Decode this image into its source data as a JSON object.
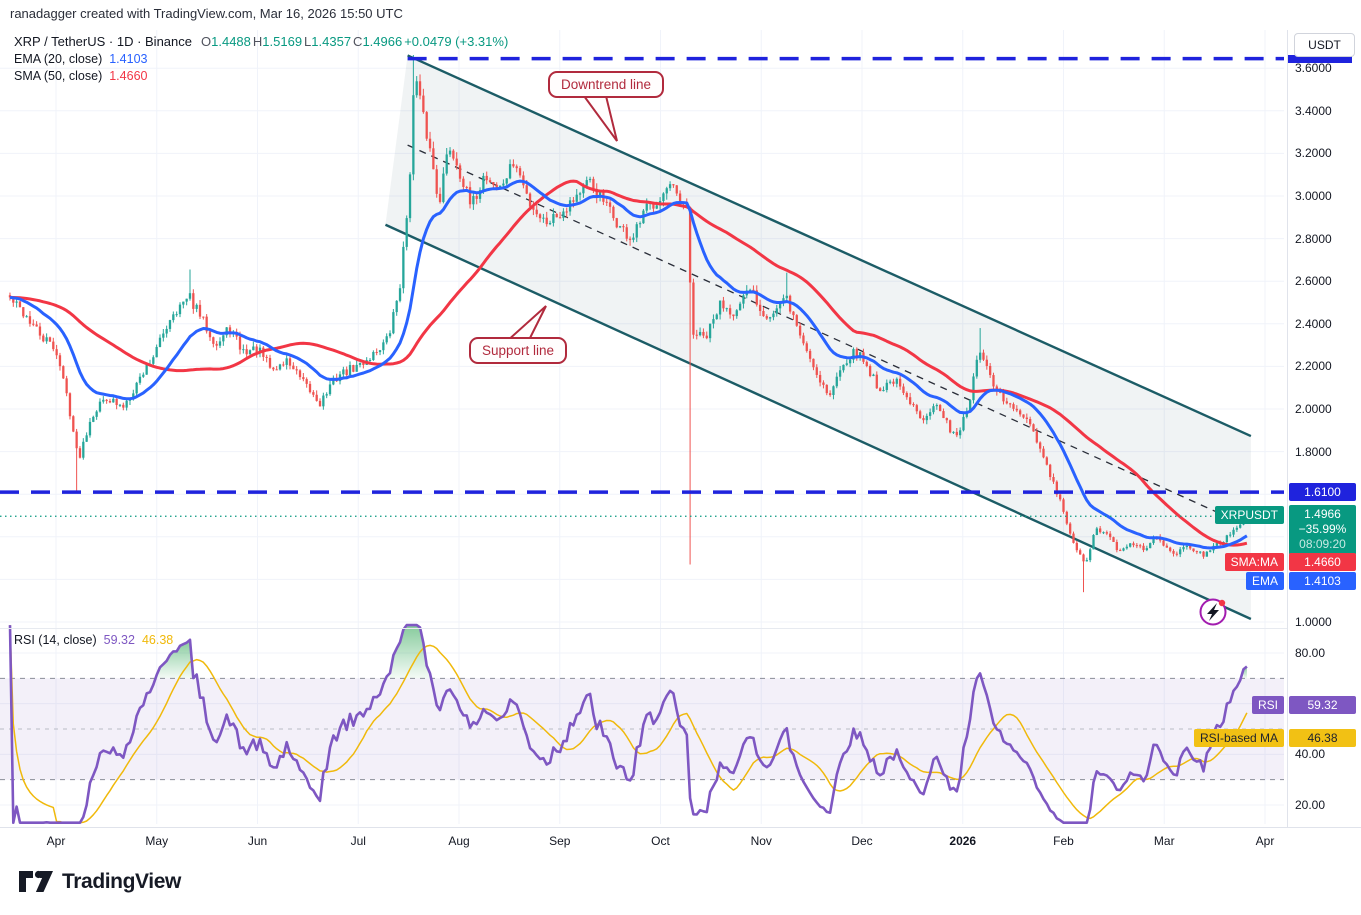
{
  "attribution": "ranadagger created with TradingView.com, Mar 16, 2026 15:50 UTC",
  "header": {
    "title": "XRP / TetherUS · 1D · Binance",
    "ohlc": [
      {
        "k": "O",
        "v": "1.4488"
      },
      {
        "k": "H",
        "v": "1.5169"
      },
      {
        "k": "L",
        "v": "1.4357"
      },
      {
        "k": "C",
        "v": "1.4966"
      },
      {
        "k": "",
        "v": "+0.0479 (+3.31%)"
      }
    ],
    "ema_label": "EMA (20, close)",
    "ema_value": "1.4103",
    "sma_label": "SMA (50, close)",
    "sma_value": "1.4660"
  },
  "rsi_legend": {
    "label": "RSI (14, close)",
    "value": "59.32",
    "ma_value": "46.38"
  },
  "annotations": {
    "downtrend": "Downtrend line",
    "support": "Support line"
  },
  "price_axis": {
    "currency": "USDT",
    "ticks": [
      {
        "label": "3.6000",
        "value": 3.6
      },
      {
        "label": "3.4000",
        "value": 3.4
      },
      {
        "label": "3.2000",
        "value": 3.2
      },
      {
        "label": "3.0000",
        "value": 3.0
      },
      {
        "label": "2.8000",
        "value": 2.8
      },
      {
        "label": "2.6000",
        "value": 2.6
      },
      {
        "label": "2.4000",
        "value": 2.4
      },
      {
        "label": "2.2000",
        "value": 2.2
      },
      {
        "label": "2.0000",
        "value": 2.0
      },
      {
        "label": "1.8000",
        "value": 1.8
      },
      {
        "label": "1.0000",
        "value": 1.0
      }
    ],
    "level_label": "1.6100",
    "countdown": {
      "price": "1.4966",
      "change": "−35.99%",
      "time": "08:09:20"
    },
    "sma": "1.4660",
    "ema": "1.4103",
    "tags": {
      "symbol": "XRPUSDT",
      "sma": "SMA:MA",
      "ema": "EMA",
      "rsi": "RSI",
      "rsi_ma": "RSI-based MA"
    }
  },
  "rsi_axis": {
    "ticks": [
      {
        "label": "80.00",
        "value": 80
      },
      {
        "label": "40.00",
        "value": 40
      },
      {
        "label": "20.00",
        "value": 20
      }
    ],
    "value": "59.32",
    "ma_value": "46.38"
  },
  "time_axis": {
    "months": [
      {
        "label": "Apr",
        "m": 0
      },
      {
        "label": "May",
        "m": 1
      },
      {
        "label": "Jun",
        "m": 2
      },
      {
        "label": "Jul",
        "m": 3
      },
      {
        "label": "Aug",
        "m": 4
      },
      {
        "label": "Sep",
        "m": 5
      },
      {
        "label": "Oct",
        "m": 6
      },
      {
        "label": "Nov",
        "m": 7
      },
      {
        "label": "Dec",
        "m": 8
      },
      {
        "label": "2026",
        "m": 9,
        "bold": true
      },
      {
        "label": "Feb",
        "m": 10
      },
      {
        "label": "Mar",
        "m": 11
      },
      {
        "label": "Apr",
        "m": 12
      }
    ]
  },
  "logo_text": "TradingView",
  "colors": {
    "up": "#26a69a",
    "down": "#ef5350",
    "ema": "#2962ff",
    "sma": "#f23645",
    "teal": "#089981",
    "blue_line": "#1f23dd",
    "channel": "#1c5c66",
    "channel_fill": "rgba(40,80,100,0.07)",
    "median": "#2a2e39",
    "rsi": "#7e57c2",
    "rsi_ma": "#f0b90b",
    "rsi_ma_badge": "#f2c114",
    "band_fill": "rgba(126,87,194,0.09)",
    "band_dash": "#8a8d98",
    "grid": "#f0f3fa",
    "callout": "#b12a3d",
    "icon_purple": "#a21caf"
  },
  "chart_data": {
    "type": "candlestick",
    "symbol": "XRP/USDT",
    "exchange": "Binance",
    "interval": "1D",
    "last_ohlc": {
      "open": 1.4488,
      "high": 1.5169,
      "low": 1.4357,
      "close": 1.4966,
      "change": 0.0479,
      "change_pct": 3.31
    },
    "last_price": 1.4966,
    "x_axis": {
      "unit": "month_index",
      "zero_month": "Apr 2025",
      "label_range": [
        0,
        12
      ],
      "bar_domain": [
        -0.457,
        11.82
      ],
      "bar_count": 372
    },
    "y_axis": {
      "min": 1.0,
      "max": 3.7,
      "tick_step": 0.2,
      "grid": true
    },
    "price_keypoints": [
      [
        -0.46,
        2.52
      ],
      [
        -0.3,
        2.44
      ],
      [
        -0.15,
        2.34
      ],
      [
        0.0,
        2.28
      ],
      [
        0.12,
        2.04
      ],
      [
        0.22,
        1.76
      ],
      [
        0.35,
        1.97
      ],
      [
        0.5,
        2.06
      ],
      [
        0.65,
        2.0
      ],
      [
        0.8,
        2.12
      ],
      [
        0.9,
        2.2
      ],
      [
        1.0,
        2.28
      ],
      [
        1.15,
        2.45
      ],
      [
        1.33,
        2.52
      ],
      [
        1.45,
        2.42
      ],
      [
        1.6,
        2.3
      ],
      [
        1.72,
        2.38
      ],
      [
        1.85,
        2.27
      ],
      [
        2.0,
        2.28
      ],
      [
        2.15,
        2.18
      ],
      [
        2.3,
        2.23
      ],
      [
        2.45,
        2.12
      ],
      [
        2.62,
        2.03
      ],
      [
        2.8,
        2.16
      ],
      [
        3.0,
        2.2
      ],
      [
        3.15,
        2.26
      ],
      [
        3.3,
        2.33
      ],
      [
        3.42,
        2.6
      ],
      [
        3.5,
        3.0
      ],
      [
        3.56,
        3.58
      ],
      [
        3.63,
        3.4
      ],
      [
        3.72,
        3.2
      ],
      [
        3.8,
        2.97
      ],
      [
        3.9,
        3.24
      ],
      [
        4.0,
        3.13
      ],
      [
        4.12,
        2.94
      ],
      [
        4.25,
        3.1
      ],
      [
        4.4,
        3.03
      ],
      [
        4.55,
        3.16
      ],
      [
        4.7,
        2.97
      ],
      [
        4.85,
        2.88
      ],
      [
        5.0,
        2.92
      ],
      [
        5.15,
        3.0
      ],
      [
        5.3,
        3.06
      ],
      [
        5.45,
        2.96
      ],
      [
        5.6,
        2.85
      ],
      [
        5.72,
        2.79
      ],
      [
        5.86,
        2.94
      ],
      [
        6.0,
        3.0
      ],
      [
        6.1,
        3.04
      ],
      [
        6.2,
        2.96
      ],
      [
        6.27,
        2.92
      ],
      [
        6.31,
        2.36
      ],
      [
        6.45,
        2.33
      ],
      [
        6.6,
        2.5
      ],
      [
        6.75,
        2.45
      ],
      [
        6.9,
        2.57
      ],
      [
        7.0,
        2.46
      ],
      [
        7.1,
        2.44
      ],
      [
        7.25,
        2.52
      ],
      [
        7.4,
        2.33
      ],
      [
        7.55,
        2.17
      ],
      [
        7.68,
        2.06
      ],
      [
        7.82,
        2.23
      ],
      [
        7.95,
        2.27
      ],
      [
        8.05,
        2.2
      ],
      [
        8.18,
        2.09
      ],
      [
        8.32,
        2.14
      ],
      [
        8.46,
        2.03
      ],
      [
        8.6,
        1.96
      ],
      [
        8.72,
        2.03
      ],
      [
        8.85,
        1.92
      ],
      [
        8.95,
        1.88
      ],
      [
        9.05,
        2.0
      ],
      [
        9.17,
        2.28
      ],
      [
        9.3,
        2.1
      ],
      [
        9.45,
        2.02
      ],
      [
        9.6,
        1.96
      ],
      [
        9.72,
        1.87
      ],
      [
        9.83,
        1.73
      ],
      [
        9.93,
        1.61
      ],
      [
        10.0,
        1.52
      ],
      [
        10.1,
        1.36
      ],
      [
        10.21,
        1.27
      ],
      [
        10.33,
        1.44
      ],
      [
        10.45,
        1.4
      ],
      [
        10.57,
        1.32
      ],
      [
        10.68,
        1.38
      ],
      [
        10.8,
        1.33
      ],
      [
        10.9,
        1.4
      ],
      [
        11.0,
        1.37
      ],
      [
        11.12,
        1.32
      ],
      [
        11.25,
        1.36
      ],
      [
        11.4,
        1.31
      ],
      [
        11.55,
        1.37
      ],
      [
        11.68,
        1.43
      ],
      [
        11.82,
        1.4966
      ]
    ],
    "wick_events": [
      {
        "m": 0.22,
        "low": 1.615
      },
      {
        "m": 1.33,
        "high": 2.655
      },
      {
        "m": 3.56,
        "high": 3.662
      },
      {
        "m": 6.31,
        "low": 1.27
      },
      {
        "m": 7.25,
        "high": 2.64
      },
      {
        "m": 9.17,
        "high": 2.38
      },
      {
        "m": 10.21,
        "low": 1.14
      }
    ],
    "levels": [
      {
        "name": "resistance",
        "price": 3.645,
        "style": "dashed-blue",
        "from_m": 3.49
      },
      {
        "name": "horizontal-support",
        "price": 1.61,
        "style": "dashed-blue",
        "label": "1.6100"
      },
      {
        "name": "last-price",
        "price": 1.4966,
        "style": "dotted-teal"
      }
    ],
    "channel": {
      "upper": [
        [
          3.49,
          3.66
        ],
        [
          11.86,
          1.873
        ]
      ],
      "lower": [
        [
          3.27,
          2.865
        ],
        [
          11.86,
          1.014
        ]
      ],
      "median": "dashed"
    },
    "indicators": {
      "ema": {
        "period": 20,
        "last": 1.4103
      },
      "sma": {
        "period": 50,
        "last": 1.466
      },
      "rsi": {
        "period": 14,
        "last": 59.32,
        "ma_last": 46.38,
        "bands": [
          70,
          50,
          30
        ],
        "overbought_fill": "green"
      }
    }
  }
}
